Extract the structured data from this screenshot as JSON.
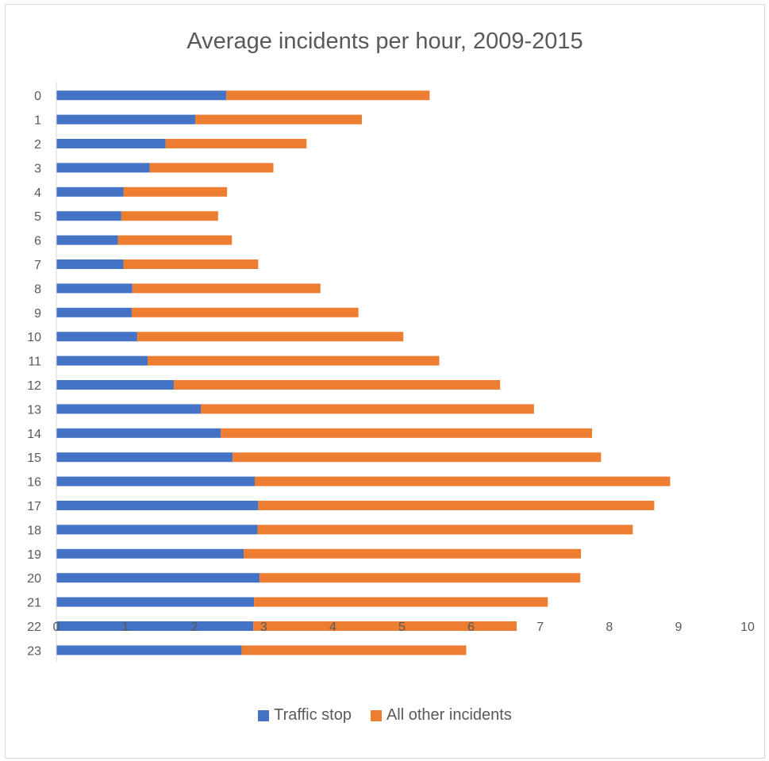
{
  "chart_data": {
    "type": "bar",
    "orientation": "horizontal",
    "stacked": true,
    "title": "Average incidents per hour, 2009-2015",
    "xlabel": "",
    "ylabel": "",
    "xlim": [
      0,
      10
    ],
    "x_ticks": [
      "0",
      "1",
      "2",
      "3",
      "4",
      "5",
      "6",
      "7",
      "8",
      "9",
      "10"
    ],
    "grid": false,
    "legend_position": "bottom",
    "categories": [
      "0",
      "1",
      "2",
      "3",
      "4",
      "5",
      "6",
      "7",
      "8",
      "9",
      "10",
      "11",
      "12",
      "13",
      "14",
      "15",
      "16",
      "17",
      "18",
      "19",
      "20",
      "21",
      "22",
      "23"
    ],
    "series": [
      {
        "name": "Traffic stop",
        "color": "#4472c4",
        "values": [
          2.46,
          2.01,
          1.58,
          1.35,
          0.97,
          0.94,
          0.89,
          0.97,
          1.1,
          1.09,
          1.17,
          1.32,
          1.7,
          2.09,
          2.38,
          2.55,
          2.87,
          2.92,
          2.91,
          2.71,
          2.94,
          2.86,
          2.85,
          2.68
        ]
      },
      {
        "name": "All other incidents",
        "color": "#ed7d31",
        "values": [
          2.94,
          2.41,
          2.04,
          1.79,
          1.5,
          1.4,
          1.65,
          1.95,
          2.72,
          3.28,
          3.85,
          4.22,
          4.72,
          4.82,
          5.37,
          5.33,
          6.01,
          5.73,
          5.43,
          4.88,
          4.64,
          4.25,
          3.81,
          3.25
        ]
      }
    ]
  }
}
